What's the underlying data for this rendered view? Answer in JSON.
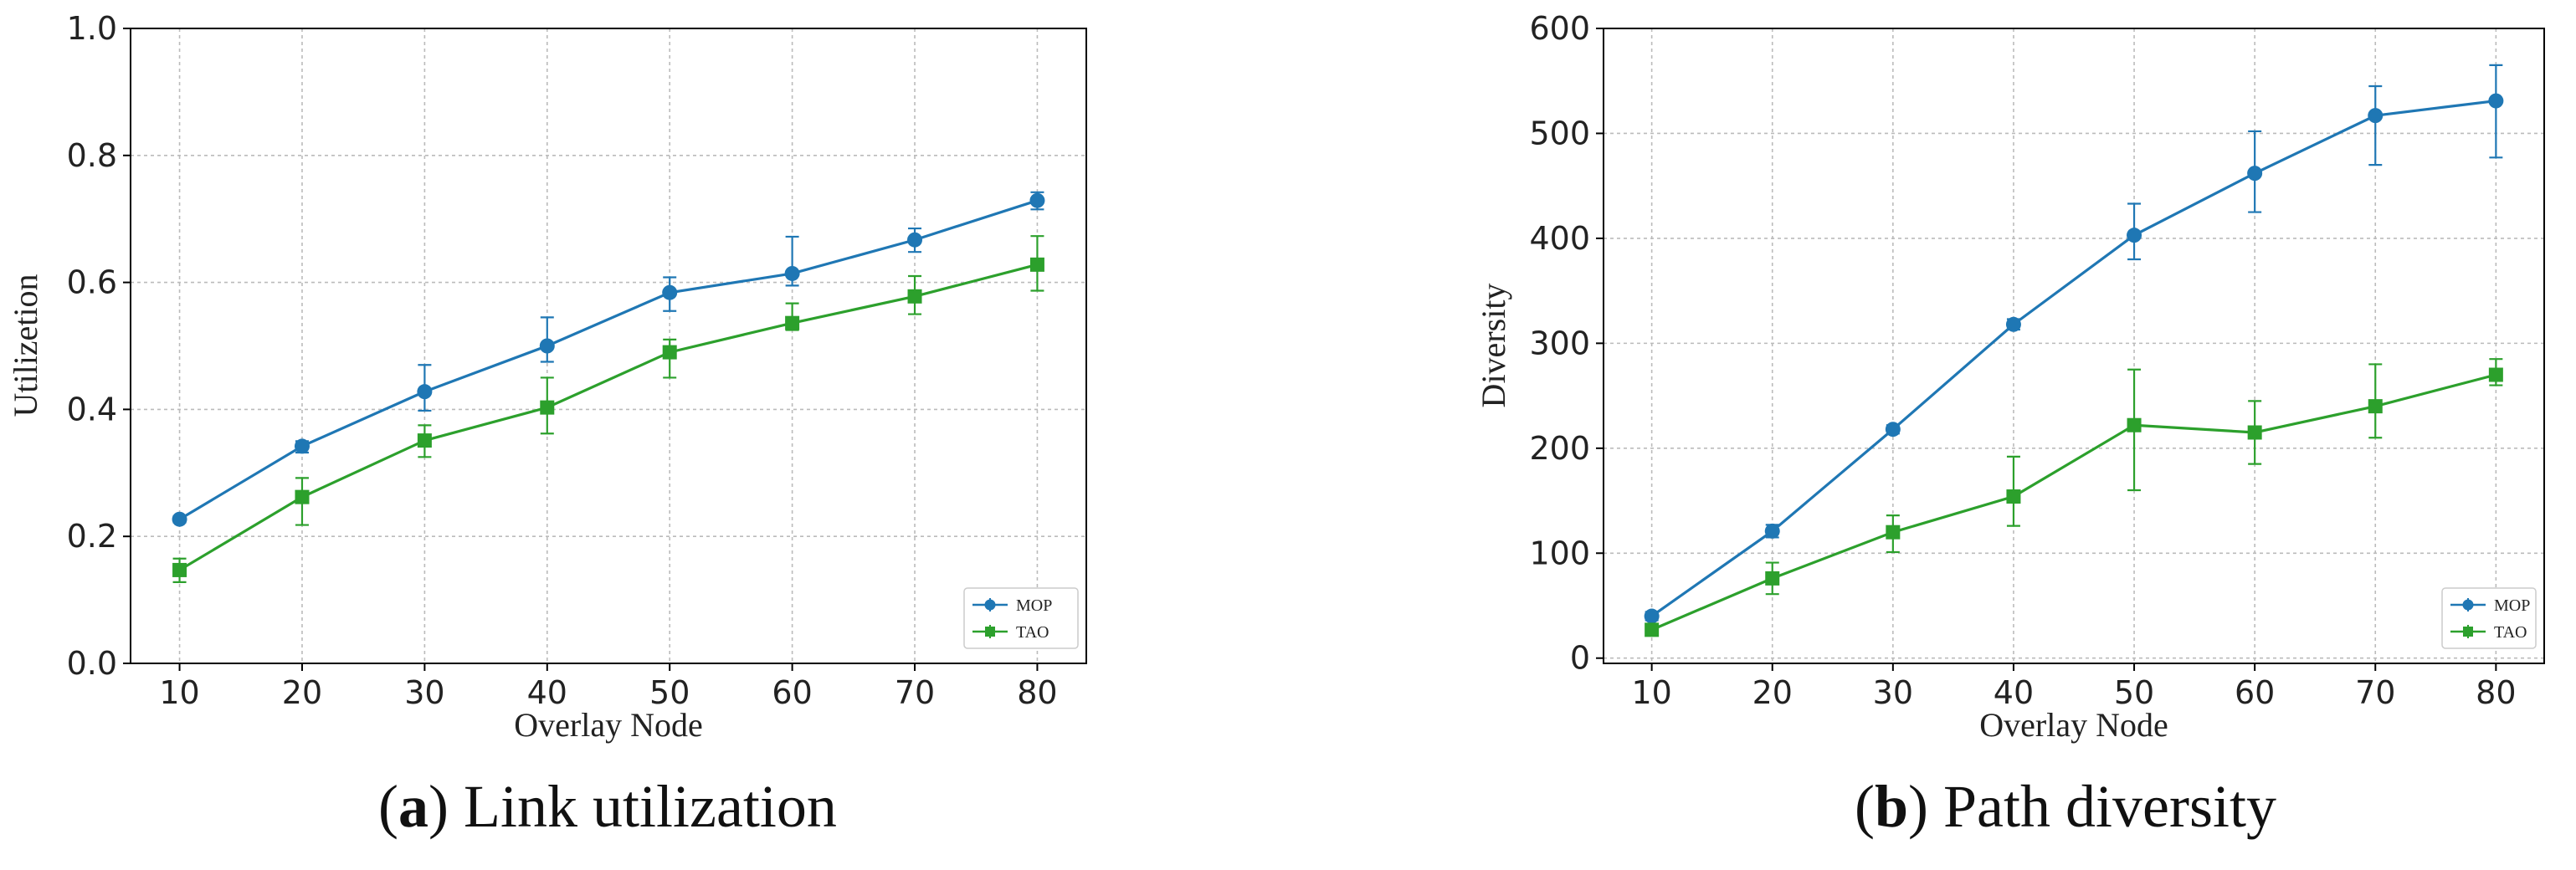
{
  "chart_data": [
    {
      "type": "line",
      "panel": "a",
      "caption_letter": "a",
      "caption_text": "Link utilization",
      "xlabel": "Overlay Node",
      "ylabel": "Utilizetion",
      "x": [
        10,
        20,
        30,
        40,
        50,
        60,
        70,
        80
      ],
      "xlim": [
        6,
        84
      ],
      "ylim": [
        0.0,
        1.0
      ],
      "yticks": [
        0.0,
        0.2,
        0.4,
        0.6,
        0.8,
        1.0
      ],
      "ytick_labels": [
        "0.0",
        "0.2",
        "0.4",
        "0.6",
        "0.8",
        "1.0"
      ],
      "xtick_labels": [
        "10",
        "20",
        "30",
        "40",
        "50",
        "60",
        "70",
        "80"
      ],
      "grid": true,
      "legend_position": "bottom-right",
      "series": [
        {
          "name": "MOP",
          "color": "#1f77b4",
          "marker": "circle",
          "values": [
            0.227,
            0.342,
            0.428,
            0.5,
            0.584,
            0.614,
            0.667,
            0.729
          ],
          "err_low": [
            0.222,
            0.332,
            0.398,
            0.475,
            0.555,
            0.595,
            0.648,
            0.715
          ],
          "err_high": [
            0.232,
            0.35,
            0.47,
            0.545,
            0.608,
            0.672,
            0.685,
            0.742
          ]
        },
        {
          "name": "TAO",
          "color": "#2ca02c",
          "marker": "square",
          "values": [
            0.147,
            0.262,
            0.351,
            0.403,
            0.49,
            0.536,
            0.578,
            0.628
          ],
          "err_low": [
            0.128,
            0.218,
            0.325,
            0.362,
            0.45,
            0.525,
            0.55,
            0.587
          ],
          "err_high": [
            0.165,
            0.292,
            0.375,
            0.45,
            0.51,
            0.567,
            0.61,
            0.673
          ]
        }
      ]
    },
    {
      "type": "line",
      "panel": "b",
      "caption_letter": "b",
      "caption_text": "Path diversity",
      "xlabel": "Overlay Node",
      "ylabel": "Diversity",
      "x": [
        10,
        20,
        30,
        40,
        50,
        60,
        70,
        80
      ],
      "xlim": [
        6,
        84
      ],
      "ylim": [
        -5,
        600
      ],
      "yticks": [
        0,
        100,
        200,
        300,
        400,
        500,
        600
      ],
      "ytick_labels": [
        "0",
        "100",
        "200",
        "300",
        "400",
        "500",
        "600"
      ],
      "xtick_labels": [
        "10",
        "20",
        "30",
        "40",
        "50",
        "60",
        "70",
        "80"
      ],
      "grid": true,
      "legend_position": "bottom-right",
      "series": [
        {
          "name": "MOP",
          "color": "#1f77b4",
          "marker": "circle",
          "values": [
            40,
            121,
            218,
            318,
            403,
            462,
            517,
            531
          ],
          "err_low": [
            36,
            115,
            214,
            313,
            380,
            425,
            470,
            477
          ],
          "err_high": [
            44,
            127,
            222,
            323,
            433,
            502,
            545,
            565
          ]
        },
        {
          "name": "TAO",
          "color": "#2ca02c",
          "marker": "square",
          "values": [
            27,
            76,
            120,
            154,
            222,
            215,
            240,
            270
          ],
          "err_low": [
            22,
            61,
            101,
            126,
            160,
            185,
            210,
            260
          ],
          "err_high": [
            32,
            91,
            136,
            192,
            275,
            245,
            280,
            285
          ]
        }
      ]
    }
  ]
}
